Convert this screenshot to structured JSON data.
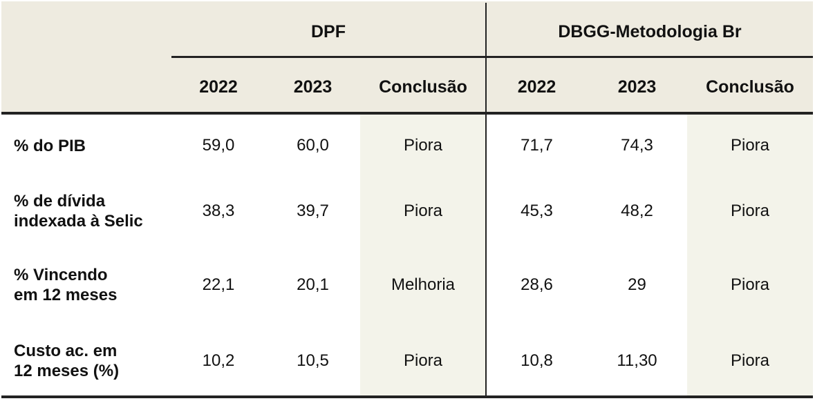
{
  "table": {
    "groups": [
      {
        "label": "DPF"
      },
      {
        "label": "DBGG-Metodologia Br"
      }
    ],
    "columns": [
      "2022",
      "2023",
      "Conclusão",
      "2022",
      "2023",
      "Conclusão"
    ],
    "rows": [
      {
        "label": "% do PIB",
        "cells": [
          "59,0",
          "60,0",
          "Piora",
          "71,7",
          "74,3",
          "Piora"
        ]
      },
      {
        "label": "% de dívida\nindexada à Selic",
        "cells": [
          "38,3",
          "39,7",
          "Piora",
          "45,3",
          "48,2",
          "Piora"
        ]
      },
      {
        "label": "% Vincendo\nem 12 meses",
        "cells": [
          "22,1",
          "20,1",
          "Melhoria",
          "28,6",
          "29",
          "Piora"
        ]
      },
      {
        "label": "Custo ac. em\n12 meses (%)",
        "cells": [
          "10,2",
          "10,5",
          "Piora",
          "10,8",
          "11,30",
          "Piora"
        ]
      }
    ]
  }
}
